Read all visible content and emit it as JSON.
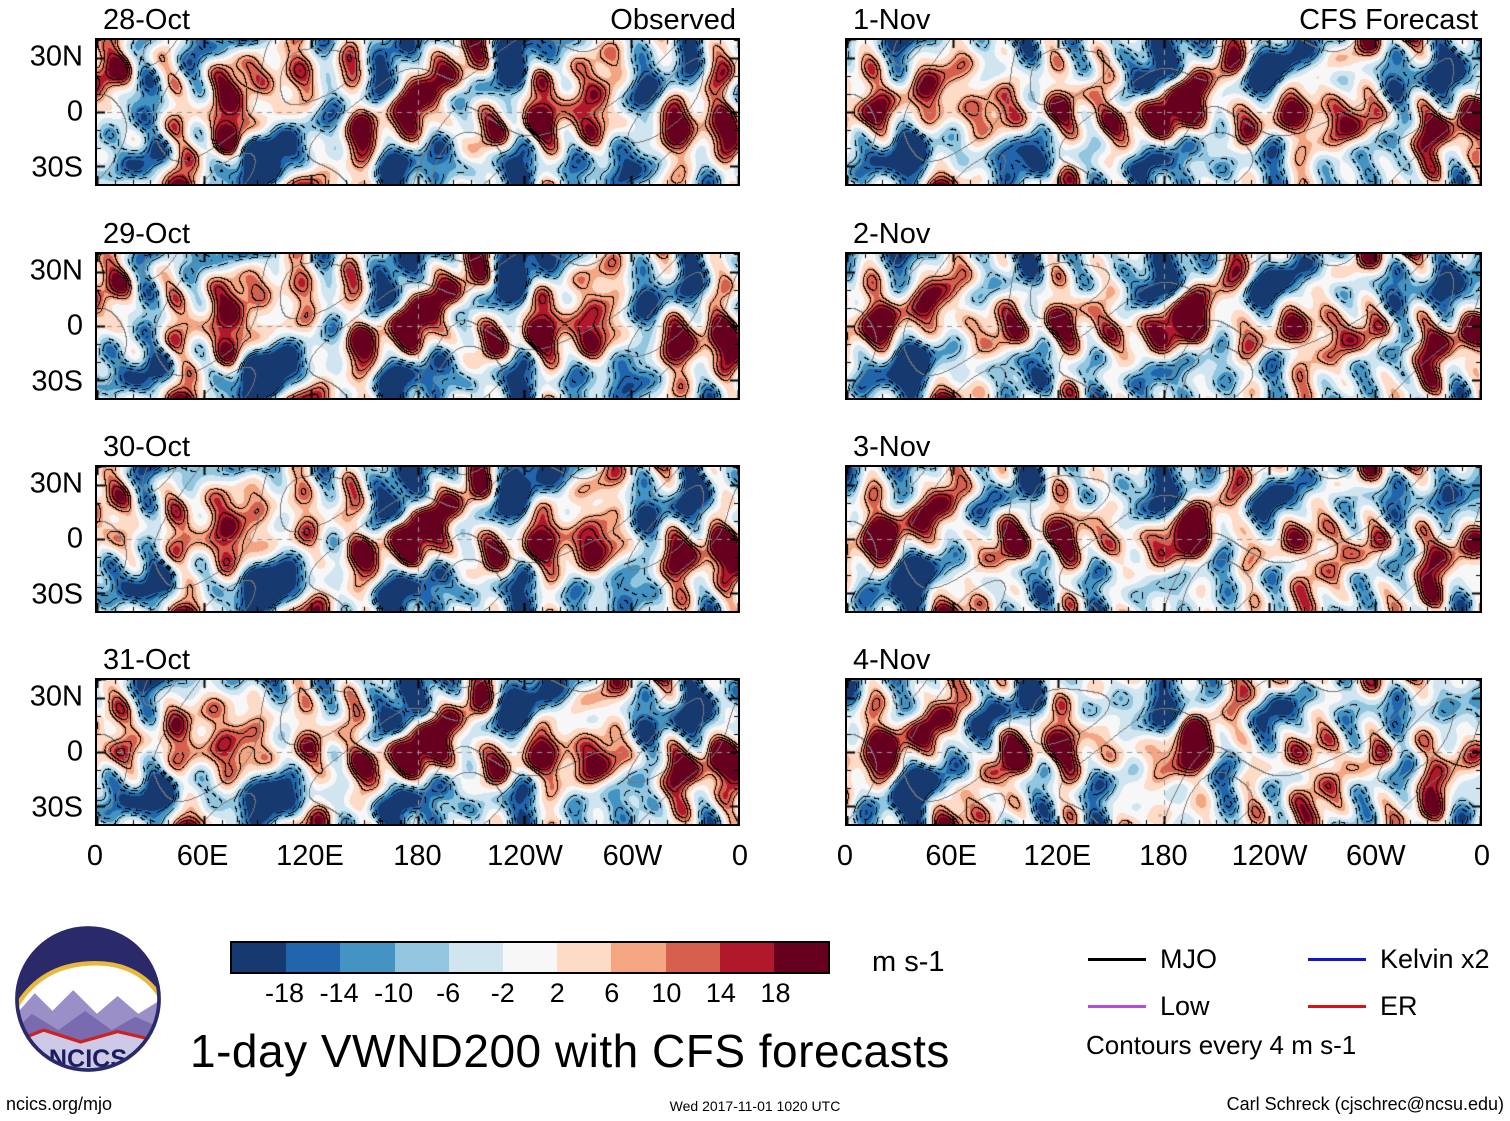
{
  "chart_data": {
    "type": "heatmap",
    "title": "1-day VWND200 with CFS forecasts",
    "columns": [
      {
        "header": "Observed",
        "panels": [
          "28-Oct",
          "29-Oct",
          "30-Oct",
          "31-Oct"
        ]
      },
      {
        "header": "CFS Forecast",
        "panels": [
          "1-Nov",
          "2-Nov",
          "3-Nov",
          "4-Nov"
        ]
      }
    ],
    "x_tick_labels": [
      "0",
      "60E",
      "120E",
      "180",
      "120W",
      "60W",
      "0"
    ],
    "y_tick_labels": [
      "30N",
      "0",
      "30S"
    ],
    "colorbar": {
      "levels": [
        -18,
        -14,
        -10,
        -6,
        -2,
        2,
        6,
        10,
        14,
        18
      ],
      "tick_labels": [
        "-18",
        "-14",
        "-10",
        "-6",
        "-2",
        "2",
        "6",
        "10",
        "14",
        "18"
      ],
      "colors": [
        "#16396f",
        "#2166ac",
        "#4393c3",
        "#92c5de",
        "#d1e5f0",
        "#f7f7f7",
        "#fddbc7",
        "#f4a582",
        "#d6604d",
        "#b2182b",
        "#67001f"
      ],
      "units_label": "m s-1"
    },
    "legend": {
      "items": [
        {
          "label": "MJO",
          "color": "#000000"
        },
        {
          "label": "Kelvin x2",
          "color": "#1414cc"
        },
        {
          "label": "Low",
          "color": "#b84ae0"
        },
        {
          "label": "ER",
          "color": "#dd1111"
        }
      ],
      "note": "Contours every 4 m s-1"
    }
  },
  "logo": {
    "text": "NCICS"
  },
  "footer": {
    "left": "ncics.org/mjo",
    "center": "Wed 2017-11-01 1020 UTC",
    "right": "Carl Schreck (cjschrec@ncsu.edu)"
  }
}
